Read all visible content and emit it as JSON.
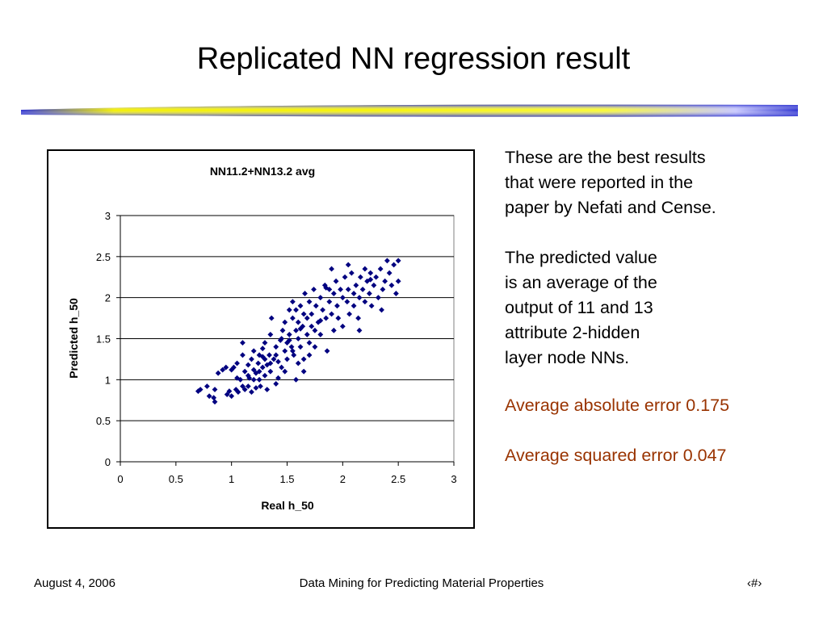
{
  "slide": {
    "title": "Replicated NN regression result",
    "paragraph1": [
      "These are the best results",
      "that were reported in the",
      "paper by Nefati and Cense."
    ],
    "paragraph2": [
      "The predicted value",
      "is an average of the",
      "output of 11 and 13",
      "attribute 2-hidden",
      "layer node NNs."
    ],
    "error_abs": "Average absolute error 0.175",
    "error_sq": "Average squared error 0.047",
    "accent_color": "#993300"
  },
  "footer": {
    "date": "August 4, 2006",
    "center": "Data Mining for Predicting Material Properties",
    "page": "‹#›"
  },
  "chart_data": {
    "type": "scatter",
    "title": "NN11.2+NN13.2 avg",
    "xlabel": "Real h_50",
    "ylabel": "Predicted h_50",
    "xlim": [
      0,
      3
    ],
    "ylim": [
      0,
      3
    ],
    "x_ticks": [
      "0",
      "0.5",
      "1",
      "1.5",
      "2",
      "2.5",
      "3"
    ],
    "y_ticks": [
      "0",
      "0.5",
      "1",
      "1.5",
      "2",
      "2.5",
      "3"
    ],
    "grid": "horizontal",
    "legend": "none",
    "marker_color": "#000080",
    "points": [
      [
        0.7,
        0.86
      ],
      [
        0.72,
        0.88
      ],
      [
        0.78,
        0.92
      ],
      [
        0.8,
        0.8
      ],
      [
        0.84,
        0.78
      ],
      [
        0.85,
        0.73
      ],
      [
        0.85,
        0.88
      ],
      [
        0.88,
        1.08
      ],
      [
        0.92,
        1.12
      ],
      [
        0.96,
        0.82
      ],
      [
        0.98,
        0.86
      ],
      [
        1.0,
        1.12
      ],
      [
        1.02,
        1.15
      ],
      [
        1.04,
        0.88
      ],
      [
        1.05,
        1.2
      ],
      [
        1.06,
        0.85
      ],
      [
        1.08,
        1.0
      ],
      [
        1.1,
        0.92
      ],
      [
        1.1,
        1.3
      ],
      [
        1.12,
        0.88
      ],
      [
        1.12,
        1.1
      ],
      [
        1.15,
        0.92
      ],
      [
        1.15,
        1.18
      ],
      [
        1.16,
        1.02
      ],
      [
        1.18,
        1.25
      ],
      [
        1.18,
        0.85
      ],
      [
        1.2,
        1.12
      ],
      [
        1.2,
        1.35
      ],
      [
        1.22,
        0.9
      ],
      [
        1.22,
        1.08
      ],
      [
        1.24,
        1.2
      ],
      [
        1.25,
        1.0
      ],
      [
        1.25,
        1.3
      ],
      [
        1.26,
        0.92
      ],
      [
        1.28,
        1.15
      ],
      [
        1.28,
        1.38
      ],
      [
        1.3,
        1.05
      ],
      [
        1.3,
        1.25
      ],
      [
        1.32,
        0.88
      ],
      [
        1.32,
        1.18
      ],
      [
        1.34,
        1.3
      ],
      [
        1.35,
        1.1
      ],
      [
        1.35,
        1.55
      ],
      [
        1.36,
        1.75
      ],
      [
        1.38,
        1.25
      ],
      [
        1.4,
        1.4
      ],
      [
        1.42,
        1.22
      ],
      [
        1.42,
        1.02
      ],
      [
        1.44,
        1.48
      ],
      [
        1.45,
        1.15
      ],
      [
        1.46,
        1.6
      ],
      [
        1.48,
        1.35
      ],
      [
        1.48,
        1.7
      ],
      [
        1.5,
        1.45
      ],
      [
        1.5,
        1.25
      ],
      [
        1.52,
        1.85
      ],
      [
        1.52,
        1.55
      ],
      [
        1.54,
        1.4
      ],
      [
        1.55,
        1.75
      ],
      [
        1.55,
        1.95
      ],
      [
        1.56,
        1.3
      ],
      [
        1.58,
        1.6
      ],
      [
        1.58,
        1.85
      ],
      [
        1.6,
        1.5
      ],
      [
        1.6,
        1.7
      ],
      [
        1.62,
        1.4
      ],
      [
        1.62,
        1.9
      ],
      [
        1.64,
        1.65
      ],
      [
        1.65,
        1.25
      ],
      [
        1.65,
        1.8
      ],
      [
        1.66,
        2.05
      ],
      [
        1.68,
        1.55
      ],
      [
        1.68,
        1.75
      ],
      [
        1.7,
        1.45
      ],
      [
        1.7,
        1.95
      ],
      [
        1.72,
        1.8
      ],
      [
        1.72,
        1.65
      ],
      [
        1.74,
        2.1
      ],
      [
        1.75,
        1.6
      ],
      [
        1.76,
        1.9
      ],
      [
        1.78,
        1.7
      ],
      [
        1.8,
        2.0
      ],
      [
        1.8,
        1.55
      ],
      [
        1.82,
        1.85
      ],
      [
        1.84,
        2.15
      ],
      [
        1.85,
        1.75
      ],
      [
        1.86,
        1.35
      ],
      [
        1.88,
        1.95
      ],
      [
        1.88,
        2.1
      ],
      [
        1.9,
        1.8
      ],
      [
        1.92,
        2.05
      ],
      [
        1.92,
        1.6
      ],
      [
        1.94,
        2.2
      ],
      [
        1.95,
        1.9
      ],
      [
        1.96,
        1.75
      ],
      [
        1.98,
        2.1
      ],
      [
        2.0,
        2.0
      ],
      [
        2.0,
        1.65
      ],
      [
        2.02,
        2.25
      ],
      [
        2.04,
        1.95
      ],
      [
        2.05,
        2.1
      ],
      [
        2.06,
        1.8
      ],
      [
        2.08,
        2.3
      ],
      [
        2.1,
        2.05
      ],
      [
        2.1,
        1.9
      ],
      [
        2.12,
        2.15
      ],
      [
        2.14,
        1.75
      ],
      [
        2.15,
        2.0
      ],
      [
        2.16,
        2.25
      ],
      [
        2.18,
        2.1
      ],
      [
        2.2,
        2.35
      ],
      [
        2.2,
        1.95
      ],
      [
        2.22,
        2.2
      ],
      [
        2.24,
        2.05
      ],
      [
        2.25,
        2.3
      ],
      [
        2.26,
        1.9
      ],
      [
        2.28,
        2.15
      ],
      [
        2.3,
        2.25
      ],
      [
        2.32,
        2.0
      ],
      [
        2.34,
        2.35
      ],
      [
        2.36,
        2.1
      ],
      [
        2.38,
        2.2
      ],
      [
        2.4,
        2.45
      ],
      [
        2.42,
        2.3
      ],
      [
        2.44,
        2.15
      ],
      [
        2.46,
        2.4
      ],
      [
        2.48,
        2.05
      ],
      [
        2.5,
        2.45
      ],
      [
        2.5,
        2.2
      ],
      [
        1.4,
        1.3
      ],
      [
        1.45,
        1.5
      ],
      [
        1.3,
        1.45
      ],
      [
        1.25,
        1.1
      ],
      [
        1.15,
        1.05
      ],
      [
        1.35,
        1.2
      ],
      [
        1.55,
        1.35
      ],
      [
        1.6,
        1.2
      ],
      [
        1.7,
        1.3
      ],
      [
        1.75,
        1.4
      ],
      [
        1.58,
        1.0
      ],
      [
        0.95,
        1.15
      ],
      [
        1.0,
        0.8
      ],
      [
        1.2,
        1.0
      ],
      [
        1.4,
        0.95
      ],
      [
        1.1,
        1.45
      ],
      [
        1.05,
        1.02
      ],
      [
        1.65,
        1.1
      ],
      [
        1.8,
        1.72
      ],
      [
        1.9,
        2.35
      ],
      [
        2.05,
        2.4
      ],
      [
        2.15,
        1.6
      ],
      [
        2.35,
        1.85
      ],
      [
        1.85,
        2.12
      ],
      [
        1.62,
        1.62
      ],
      [
        1.52,
        1.48
      ],
      [
        1.48,
        1.1
      ],
      [
        1.28,
        1.28
      ],
      [
        2.25,
        2.22
      ]
    ]
  }
}
